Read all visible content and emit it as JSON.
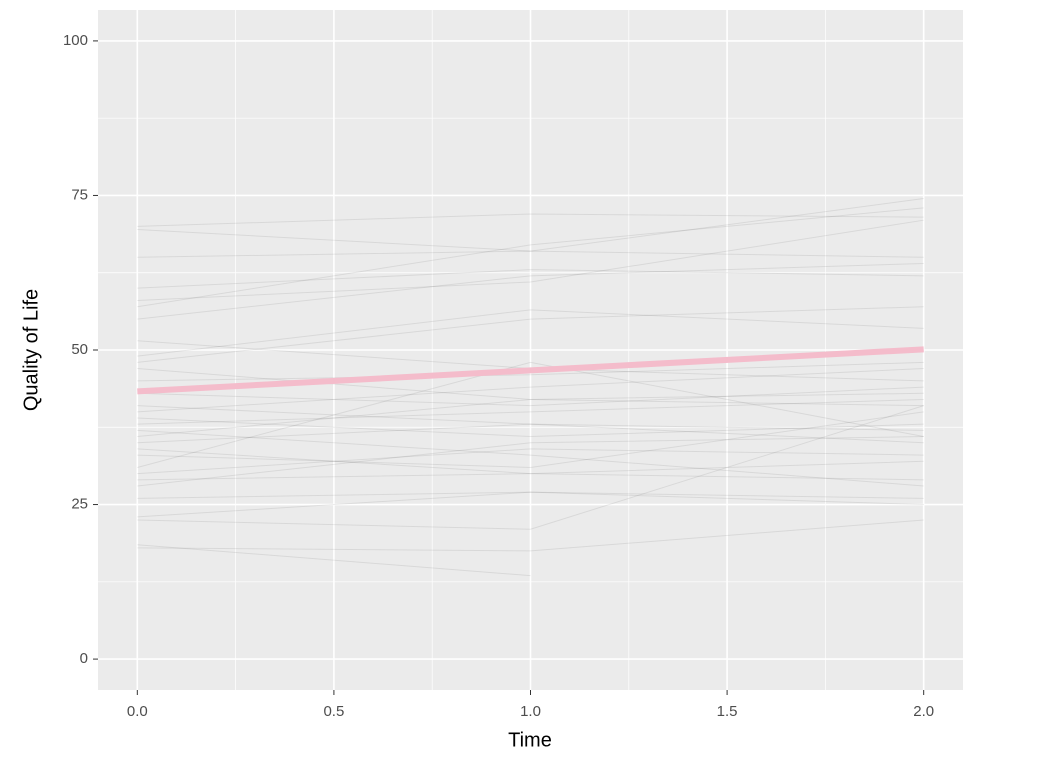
{
  "chart_data": {
    "type": "line",
    "x_label": "Time",
    "y_label": "Quality of Life",
    "x": [
      0,
      1,
      2
    ],
    "xlim": [
      -0.1,
      2.1
    ],
    "xticks": [
      {
        "value": 0,
        "label": "0.0"
      },
      0.5,
      {
        "value": 1,
        "label": "1.0"
      },
      1.5,
      {
        "value": 2,
        "label": "2.0"
      }
    ],
    "x_minor_grid": [
      0.25,
      0.75,
      1.25,
      1.75
    ],
    "ylim": [
      -5,
      105
    ],
    "yticks": [
      0,
      25,
      50,
      75,
      100
    ],
    "y_minor_grid": [
      12.5,
      37.5,
      62.5,
      87.5
    ],
    "grid": true,
    "series": [
      {
        "color": "#000000",
        "alpha": 0.08,
        "linewidth": 1,
        "values": [
          70,
          72,
          71.5
        ]
      },
      {
        "color": "#000000",
        "alpha": 0.08,
        "linewidth": 1,
        "values": [
          69.5,
          66,
          74.5
        ]
      },
      {
        "color": "#000000",
        "alpha": 0.08,
        "linewidth": 1,
        "values": [
          65,
          66,
          65
        ]
      },
      {
        "color": "#000000",
        "alpha": 0.08,
        "linewidth": 1,
        "values": [
          60,
          63,
          62
        ]
      },
      {
        "color": "#000000",
        "alpha": 0.08,
        "linewidth": 1,
        "values": [
          58,
          61,
          71
        ]
      },
      {
        "color": "#000000",
        "alpha": 0.08,
        "linewidth": 1,
        "values": [
          57,
          67,
          73
        ]
      },
      {
        "color": "#000000",
        "alpha": 0.08,
        "linewidth": 1,
        "values": [
          55,
          62,
          64
        ]
      },
      {
        "color": "#000000",
        "alpha": 0.08,
        "linewidth": 1,
        "values": [
          51.5,
          47,
          45
        ]
      },
      {
        "color": "#000000",
        "alpha": 0.08,
        "linewidth": 1,
        "values": [
          49,
          56.5,
          53.5
        ]
      },
      {
        "color": "#000000",
        "alpha": 0.08,
        "linewidth": 1,
        "values": [
          48,
          55,
          57
        ]
      },
      {
        "color": "#000000",
        "alpha": 0.08,
        "linewidth": 1,
        "values": [
          47,
          42,
          41
        ]
      },
      {
        "color": "#000000",
        "alpha": 0.08,
        "linewidth": 1,
        "values": [
          45,
          46,
          48
        ]
      },
      {
        "color": "#000000",
        "alpha": 0.08,
        "linewidth": 1,
        "values": [
          43,
          41,
          44
        ]
      },
      {
        "color": "#000000",
        "alpha": 0.08,
        "linewidth": 1,
        "values": [
          40,
          44,
          47
        ]
      },
      {
        "color": "#000000",
        "alpha": 0.08,
        "linewidth": 1,
        "values": [
          39,
          36,
          38
        ]
      },
      {
        "color": "#000000",
        "alpha": 0.08,
        "linewidth": 1,
        "values": [
          38,
          40,
          42
        ]
      },
      {
        "color": "#000000",
        "alpha": 0.08,
        "linewidth": 1,
        "values": [
          37,
          33,
          28
        ]
      },
      {
        "color": "#000000",
        "alpha": 0.08,
        "linewidth": 1,
        "values": [
          36,
          42,
          43
        ]
      },
      {
        "color": "#000000",
        "alpha": 0.08,
        "linewidth": 1,
        "values": [
          35,
          38,
          37
        ]
      },
      {
        "color": "#000000",
        "alpha": 0.08,
        "linewidth": 1,
        "values": [
          33,
          31,
          40
        ]
      },
      {
        "color": "#000000",
        "alpha": 0.08,
        "linewidth": 1,
        "values": [
          31,
          48,
          36
        ]
      },
      {
        "color": "#000000",
        "alpha": 0.08,
        "linewidth": 1,
        "values": [
          30,
          34,
          33
        ]
      },
      {
        "color": "#000000",
        "alpha": 0.08,
        "linewidth": 1,
        "values": [
          29,
          30,
          32
        ]
      },
      {
        "color": "#000000",
        "alpha": 0.08,
        "linewidth": 1,
        "values": [
          28,
          35,
          36
        ]
      },
      {
        "color": "#000000",
        "alpha": 0.08,
        "linewidth": 1,
        "values": [
          26,
          27,
          26
        ]
      },
      {
        "color": "#000000",
        "alpha": 0.08,
        "linewidth": 1,
        "values": [
          23,
          27,
          25
        ]
      },
      {
        "color": "#000000",
        "alpha": 0.08,
        "linewidth": 1,
        "values": [
          22.5,
          21,
          41
        ]
      },
      {
        "color": "#000000",
        "alpha": 0.08,
        "linewidth": 1,
        "values": [
          18.5,
          13.5,
          null
        ]
      },
      {
        "color": "#000000",
        "alpha": 0.08,
        "linewidth": 1,
        "values": [
          18,
          17.5,
          22.5
        ]
      },
      {
        "color": "#000000",
        "alpha": 0.08,
        "linewidth": 1,
        "values": [
          41,
          38,
          35
        ]
      },
      {
        "color": "#000000",
        "alpha": 0.08,
        "linewidth": 1,
        "values": [
          34,
          30,
          29
        ]
      },
      {
        "color": "#f4bccb",
        "alpha": 1,
        "linewidth": 6,
        "values": [
          43.3,
          46.7,
          50.1
        ]
      }
    ]
  }
}
